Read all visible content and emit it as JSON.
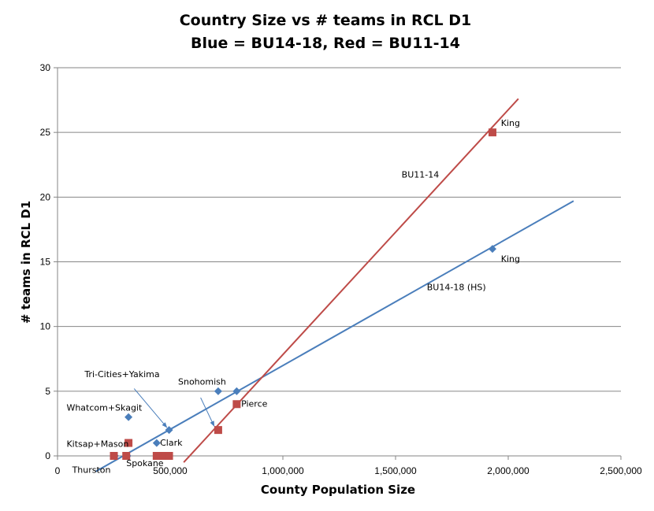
{
  "chart_data": {
    "type": "scatter",
    "title": [
      "Country Size vs # teams in RCL D1",
      "Blue = BU14-18, Red = BU11-14"
    ],
    "xlabel": "County Population Size",
    "ylabel": "# teams in RCL D1",
    "xlim": [
      0,
      2500000
    ],
    "ylim": [
      0,
      30
    ],
    "x_ticks": [
      0,
      500000,
      1000000,
      1500000,
      2000000,
      2500000
    ],
    "x_tick_labels": [
      "0",
      "500,000",
      "1,000,000",
      "1,500,000",
      "2,000,000",
      "2,500,000"
    ],
    "y_ticks": [
      0,
      5,
      10,
      15,
      20,
      25,
      30
    ],
    "y_tick_labels": [
      "0",
      "5",
      "10",
      "15",
      "20",
      "25",
      "30"
    ],
    "grid": "horizontal",
    "legend": "none",
    "series": [
      {
        "color": "#4a7ebb",
        "marker": "diamond",
        "points": [
          {
            "x": 255000,
            "y": 0
          },
          {
            "x": 310000,
            "y": 0
          },
          {
            "x": 470000,
            "y": 0
          },
          {
            "x": 315000,
            "y": 3
          },
          {
            "x": 440000,
            "y": 1
          },
          {
            "x": 495000,
            "y": 2
          },
          {
            "x": 713000,
            "y": 5
          },
          {
            "x": 795000,
            "y": 5
          },
          {
            "x": 1930000,
            "y": 16
          }
        ]
      },
      {
        "color": "#be4b48",
        "marker": "square",
        "points": [
          {
            "x": 250000,
            "y": 0
          },
          {
            "x": 305000,
            "y": 0
          },
          {
            "x": 440000,
            "y": 0
          },
          {
            "x": 470000,
            "y": 0
          },
          {
            "x": 495000,
            "y": 0
          },
          {
            "x": 315000,
            "y": 1
          },
          {
            "x": 713000,
            "y": 2
          },
          {
            "x": 795000,
            "y": 4
          },
          {
            "x": 1930000,
            "y": 25
          }
        ]
      }
    ],
    "trendlines": [
      {
        "color": "#4a7ebb",
        "from": [
          170000,
          -1.2
        ],
        "to": [
          2290000,
          19.7
        ]
      },
      {
        "color": "#be4b48",
        "from": [
          560000,
          -0.5
        ],
        "to": [
          2045000,
          27.6
        ]
      }
    ],
    "annotations": [
      {
        "text": "King",
        "at": [
          2010000,
          25.5
        ],
        "anchor": "middle"
      },
      {
        "text": "King",
        "at": [
          2010000,
          15.0
        ],
        "anchor": "middle"
      },
      {
        "text": "BU11-14",
        "at": [
          1610000,
          21.5
        ],
        "anchor": "middle"
      },
      {
        "text": "BU14-18 (HS)",
        "at": [
          1770000,
          12.8
        ],
        "anchor": "middle"
      },
      {
        "text": "Pierce",
        "at": [
          815000,
          3.8
        ],
        "anchor": "start"
      },
      {
        "text": "Snohomish",
        "at": [
          535000,
          5.5
        ],
        "anchor": "start"
      },
      {
        "text": "Tri-Cities+Yakima",
        "at": [
          120000,
          6.1
        ],
        "anchor": "start"
      },
      {
        "text": "Whatcom+Skagit",
        "at": [
          40000,
          3.5
        ],
        "anchor": "start"
      },
      {
        "text": "Clark",
        "at": [
          455000,
          0.8
        ],
        "anchor": "start"
      },
      {
        "text": "Kitsap+Mason",
        "at": [
          40000,
          0.7
        ],
        "anchor": "start"
      },
      {
        "text": "Spokane",
        "at": [
          305000,
          -0.8
        ],
        "anchor": "start"
      },
      {
        "text": "Thurston",
        "at": [
          65000,
          -1.3
        ],
        "anchor": "start"
      }
    ],
    "arrows": [
      {
        "from": [
          340000,
          5.2
        ],
        "to": [
          485000,
          2.2
        ]
      },
      {
        "from": [
          635000,
          4.5
        ],
        "to": [
          695000,
          2.3
        ]
      }
    ]
  }
}
